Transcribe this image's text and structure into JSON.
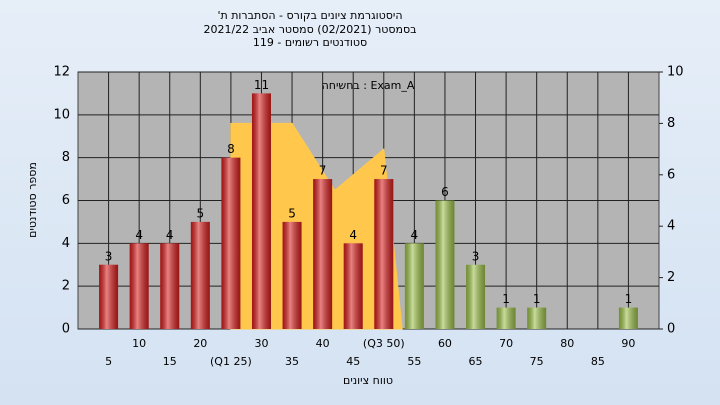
{
  "chart_data": {
    "type": "bar",
    "title_lines": [
      "היסטוגרמת ציונים בקורס - הסתברות ת'",
      "בסמסטר  (02/2021)  סמסטר אביב 2021/22",
      "סטודנטים רשומים - 119"
    ],
    "annotation": "בחשיחה : Exam_A",
    "x_label": "טווח ציונים",
    "y_label": "מספר סטודנטים",
    "categories": [
      "5",
      "10",
      "15",
      "20",
      "(Q1 25)",
      "30",
      "35",
      "40",
      "45",
      "(Q3 50)",
      "55",
      "60",
      "65",
      "70",
      "75",
      "80",
      "85",
      "90"
    ],
    "values": [
      3,
      4,
      4,
      5,
      8,
      11,
      5,
      7,
      4,
      7,
      4,
      6,
      3,
      1,
      1,
      0,
      0,
      1
    ],
    "colors": [
      "#d81c1c",
      "#d81c1c",
      "#d81c1c",
      "#d81c1c",
      "#d81c1c",
      "#d81c1c",
      "#d81c1c",
      "#d81c1c",
      "#d81c1c",
      "#d81c1c",
      "#9cc048",
      "#9cc048",
      "#9cc048",
      "#9cc048",
      "#9cc048",
      "#9cc048",
      "#9cc048",
      "#9cc048"
    ],
    "area": {
      "x": [
        25,
        25,
        35,
        42,
        50,
        53
      ],
      "values": [
        0,
        8,
        8,
        5.4,
        7,
        0
      ],
      "color": "#ffc84c",
      "axis": "y2"
    },
    "xlim": [
      0,
      95
    ],
    "ylim": [
      0,
      12
    ],
    "yticks": [
      0,
      2,
      4,
      6,
      8,
      10,
      12
    ],
    "y2lim": [
      0,
      10
    ],
    "y2ticks": [
      0,
      2,
      4,
      6,
      8,
      10
    ],
    "grid": true
  }
}
